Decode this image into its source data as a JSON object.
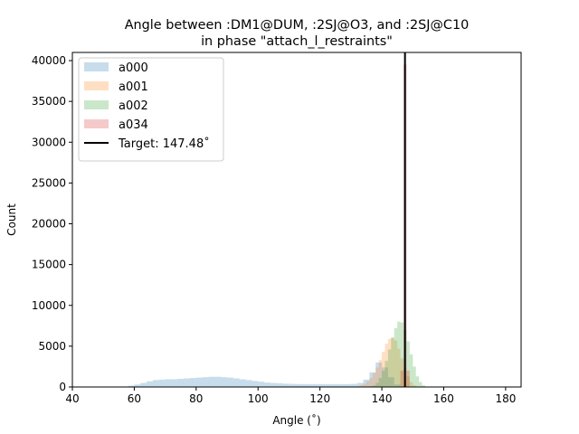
{
  "chart_data": {
    "type": "histogram",
    "title_line1": "Angle between :DM1@DUM, :2SJ@O3, and :2SJ@C10",
    "title_line2": "in phase \"attach_l_restraints\"",
    "xlabel": "Angle (˚)",
    "ylabel": "Count",
    "xlim": [
      40,
      185
    ],
    "ylim": [
      0,
      41000
    ],
    "xticks": [
      "40",
      "60",
      "80",
      "100",
      "120",
      "140",
      "160",
      "180"
    ],
    "yticks": [
      "0",
      "5000",
      "10000",
      "15000",
      "20000",
      "25000",
      "30000",
      "35000",
      "40000"
    ],
    "grid": false,
    "legend_position": "top-left",
    "target": {
      "label": "Target: 147.48˚",
      "value": 147.48,
      "color": "#000000"
    },
    "series": [
      {
        "name": "a000",
        "color": "#1f77b4",
        "opacity": 0.25,
        "bin_start": 56,
        "bin_width": 2,
        "values": [
          50,
          150,
          300,
          500,
          700,
          850,
          900,
          950,
          950,
          1000,
          1050,
          1100,
          1150,
          1200,
          1250,
          1250,
          1200,
          1150,
          1050,
          950,
          850,
          750,
          650,
          550,
          500,
          450,
          400,
          380,
          360,
          350,
          350,
          350,
          350,
          350,
          350,
          350,
          350,
          380,
          500,
          900,
          1800,
          3000,
          2400,
          1200,
          300,
          50
        ]
      },
      {
        "name": "a001",
        "color": "#ff7f0e",
        "opacity": 0.25,
        "bin_start": 130,
        "bin_width": 1,
        "values": [
          30,
          60,
          120,
          220,
          400,
          700,
          1100,
          1700,
          2400,
          3300,
          4300,
          5300,
          5900,
          6100,
          5700,
          4700,
          3500,
          2300,
          1300,
          600,
          220,
          60
        ]
      },
      {
        "name": "a002",
        "color": "#2ca02c",
        "opacity": 0.25,
        "bin_start": 135,
        "bin_width": 1,
        "values": [
          30,
          80,
          200,
          500,
          1100,
          2000,
          3200,
          4600,
          6000,
          7200,
          8000,
          7900,
          7000,
          5600,
          4000,
          2500,
          1300,
          600,
          200,
          60
        ]
      },
      {
        "name": "a034",
        "color": "#d62728",
        "opacity": 0.25,
        "bin_start": 146,
        "bin_width": 1,
        "values": [
          2000,
          39500,
          2000
        ]
      }
    ]
  }
}
